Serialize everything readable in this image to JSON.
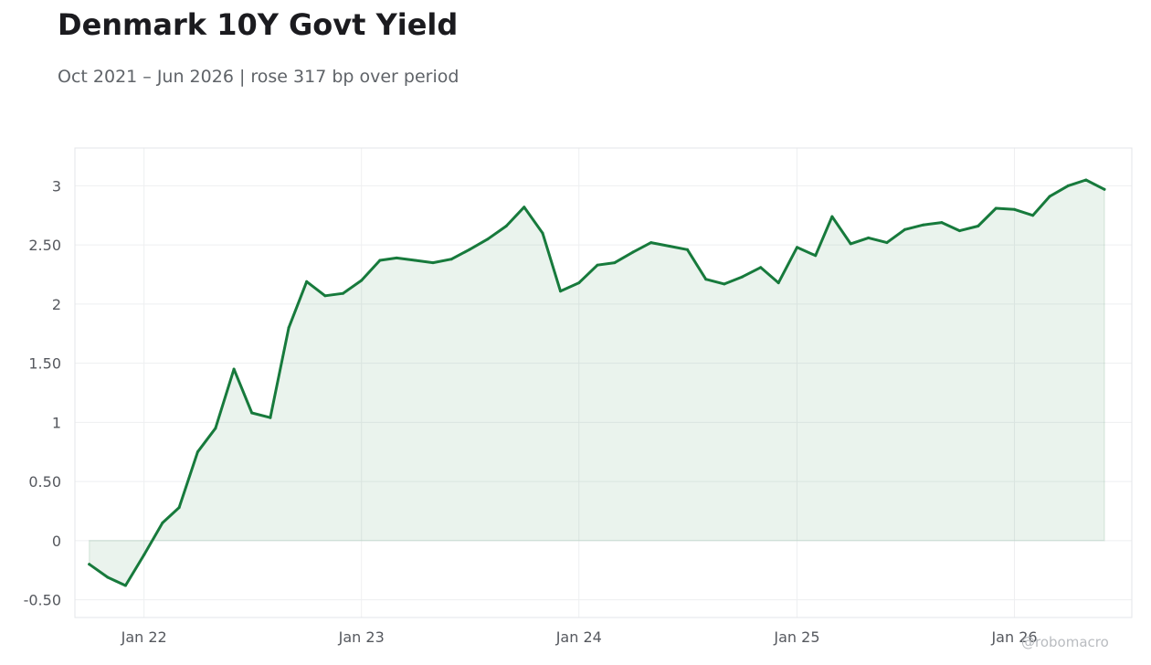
{
  "title": "Denmark 10Y Govt Yield",
  "subtitle": "Oct 2021 – Jun 2026 | rose 317 bp over period",
  "watermark": "@robomacro",
  "chart_data": {
    "type": "area",
    "title": "Denmark 10Y Govt Yield",
    "subtitle": "Oct 2021 – Jun 2026 | rose 317 bp over period",
    "xlabel": "",
    "ylabel": "",
    "xlim": [
      "2021-09-07",
      "2026-07-17"
    ],
    "ylim": [
      -0.65,
      3.32
    ],
    "grid": true,
    "line_color": "#177a3c",
    "fill_color": "#177a3c",
    "x_ticks": [
      {
        "date": "2022-01-01",
        "label": "Jan 22"
      },
      {
        "date": "2023-01-01",
        "label": "Jan 23"
      },
      {
        "date": "2024-01-01",
        "label": "Jan 24"
      },
      {
        "date": "2025-01-01",
        "label": "Jan 25"
      },
      {
        "date": "2026-01-01",
        "label": "Jan 26"
      }
    ],
    "y_ticks": [
      {
        "value": -0.5,
        "label": "-0.50"
      },
      {
        "value": 0,
        "label": "0"
      },
      {
        "value": 0.5,
        "label": "0.50"
      },
      {
        "value": 1,
        "label": "1"
      },
      {
        "value": 1.5,
        "label": "1.50"
      },
      {
        "value": 2,
        "label": "2"
      },
      {
        "value": 2.5,
        "label": "2.50"
      },
      {
        "value": 3,
        "label": "3"
      }
    ],
    "x": [
      "2021-10-01",
      "2021-11-01",
      "2021-12-01",
      "2022-01-01",
      "2022-02-01",
      "2022-03-01",
      "2022-04-01",
      "2022-05-01",
      "2022-06-01",
      "2022-07-01",
      "2022-08-01",
      "2022-09-01",
      "2022-10-01",
      "2022-11-01",
      "2022-12-01",
      "2023-01-01",
      "2023-02-01",
      "2023-03-01",
      "2023-04-01",
      "2023-05-01",
      "2023-06-01",
      "2023-07-01",
      "2023-08-01",
      "2023-09-01",
      "2023-10-01",
      "2023-11-01",
      "2023-12-01",
      "2024-01-01",
      "2024-02-01",
      "2024-03-01",
      "2024-04-01",
      "2024-05-01",
      "2024-06-01",
      "2024-07-01",
      "2024-08-01",
      "2024-09-01",
      "2024-10-01",
      "2024-11-01",
      "2024-12-01",
      "2025-01-01",
      "2025-02-01",
      "2025-03-01",
      "2025-04-01",
      "2025-05-01",
      "2025-06-01",
      "2025-07-01",
      "2025-08-01",
      "2025-09-01",
      "2025-10-01",
      "2025-11-01",
      "2025-12-01",
      "2026-01-01",
      "2026-02-01",
      "2026-03-01",
      "2026-04-01",
      "2026-05-01",
      "2026-06-01"
    ],
    "values": [
      -0.2,
      -0.31,
      -0.38,
      -0.12,
      0.15,
      0.28,
      0.75,
      0.95,
      1.45,
      1.08,
      1.04,
      1.8,
      2.19,
      2.07,
      2.09,
      2.2,
      2.37,
      2.39,
      2.37,
      2.35,
      2.38,
      2.46,
      2.55,
      2.66,
      2.82,
      2.6,
      2.11,
      2.18,
      2.33,
      2.35,
      2.44,
      2.52,
      2.49,
      2.46,
      2.21,
      2.17,
      2.23,
      2.31,
      2.18,
      2.48,
      2.41,
      2.74,
      2.51,
      2.56,
      2.52,
      2.63,
      2.67,
      2.69,
      2.62,
      2.66,
      2.81,
      2.8,
      2.75,
      2.91,
      3.0,
      3.05,
      2.97
    ]
  }
}
